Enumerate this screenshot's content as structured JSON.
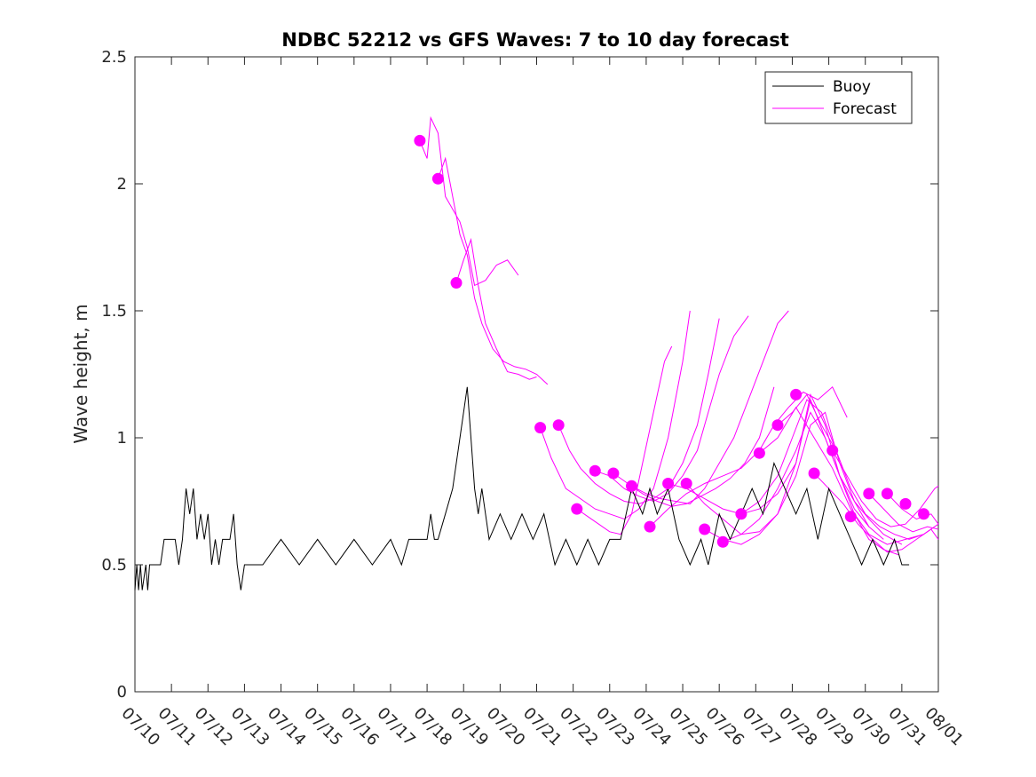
{
  "chart_data": {
    "type": "line",
    "title": "NDBC 52212 vs GFS Waves: 7 to 10 day forecast",
    "xlabel": "",
    "ylabel": "Wave height, m",
    "xlim": [
      "07/10",
      "08/01"
    ],
    "ylim": [
      0,
      2.5
    ],
    "x_ticks": [
      "07/10",
      "07/11",
      "07/12",
      "07/13",
      "07/14",
      "07/15",
      "07/16",
      "07/17",
      "07/18",
      "07/19",
      "07/20",
      "07/21",
      "07/22",
      "07/23",
      "07/24",
      "07/25",
      "07/26",
      "07/27",
      "07/28",
      "07/29",
      "07/30",
      "07/31",
      "08/01"
    ],
    "y_ticks": [
      "0",
      "0.5",
      "1",
      "1.5",
      "2",
      "2.5"
    ],
    "grid": false,
    "legend_position": "top-right",
    "colors": {
      "buoy": "#000000",
      "forecast": "#ff00ff",
      "axes": "#262626"
    },
    "series": [
      {
        "name": "Buoy",
        "color": "#000000",
        "x": [
          0,
          0.05,
          0.1,
          0.15,
          0.2,
          0.3,
          0.35,
          0.4,
          0.5,
          0.7,
          0.8,
          0.95,
          1.1,
          1.2,
          1.3,
          1.35,
          1.4,
          1.5,
          1.6,
          1.7,
          1.8,
          1.9,
          2.0,
          2.1,
          2.2,
          2.3,
          2.4,
          2.5,
          2.6,
          2.7,
          2.8,
          2.9,
          3.0,
          3.1,
          3.2,
          3.5,
          4.0,
          4.5,
          5.0,
          5.5,
          6.0,
          6.5,
          7.0,
          7.3,
          7.5,
          7.8,
          8.0,
          8.1,
          8.2,
          8.3,
          8.5,
          8.7,
          8.8,
          8.9,
          9.0,
          9.1,
          9.2,
          9.3,
          9.4,
          9.5,
          9.7,
          10.0,
          10.3,
          10.6,
          10.9,
          11.2,
          11.5,
          11.8,
          12.1,
          12.4,
          12.7,
          13.0,
          13.3,
          13.6,
          13.9,
          14.1,
          14.3,
          14.6,
          14.9,
          15.2,
          15.5,
          15.7,
          16.0,
          16.3,
          16.6,
          16.9,
          17.2,
          17.5,
          17.8,
          18.1,
          18.4,
          18.7,
          19.0,
          19.3,
          19.6,
          19.9,
          20.2,
          20.5,
          20.8,
          21.0,
          21.2
        ],
        "y": [
          0.4,
          0.5,
          0.4,
          0.5,
          0.4,
          0.5,
          0.4,
          0.5,
          0.5,
          0.5,
          0.6,
          0.6,
          0.6,
          0.5,
          0.6,
          0.7,
          0.8,
          0.7,
          0.8,
          0.6,
          0.7,
          0.6,
          0.7,
          0.5,
          0.6,
          0.5,
          0.6,
          0.6,
          0.6,
          0.7,
          0.5,
          0.4,
          0.5,
          0.5,
          0.5,
          0.5,
          0.6,
          0.5,
          0.6,
          0.5,
          0.6,
          0.5,
          0.6,
          0.5,
          0.6,
          0.6,
          0.6,
          0.7,
          0.6,
          0.6,
          0.7,
          0.8,
          0.9,
          1.0,
          1.1,
          1.2,
          1.0,
          0.8,
          0.7,
          0.8,
          0.6,
          0.7,
          0.6,
          0.7,
          0.6,
          0.7,
          0.5,
          0.6,
          0.5,
          0.6,
          0.5,
          0.6,
          0.6,
          0.8,
          0.7,
          0.8,
          0.7,
          0.8,
          0.6,
          0.5,
          0.6,
          0.5,
          0.7,
          0.6,
          0.7,
          0.8,
          0.7,
          0.9,
          0.8,
          0.7,
          0.8,
          0.6,
          0.8,
          0.7,
          0.6,
          0.5,
          0.6,
          0.5,
          0.6,
          0.5,
          0.5
        ]
      },
      {
        "name": "Forecast",
        "color": "#ff00ff",
        "traces": [
          {
            "x": [
              7.8,
              8.0,
              8.1,
              8.3,
              8.5,
              8.7,
              8.9,
              9.1,
              9.3,
              9.6,
              9.9,
              10.2,
              10.5
            ],
            "y": [
              2.17,
              2.1,
              2.26,
              2.2,
              1.95,
              1.9,
              1.85,
              1.75,
              1.6,
              1.62,
              1.68,
              1.7,
              1.64
            ]
          },
          {
            "x": [
              8.3,
              8.5,
              8.7,
              8.9,
              9.1,
              9.3,
              9.5,
              9.8,
              10.1,
              10.4,
              10.7,
              11.0,
              11.3
            ],
            "y": [
              2.02,
              2.1,
              1.95,
              1.8,
              1.72,
              1.55,
              1.45,
              1.35,
              1.3,
              1.28,
              1.27,
              1.25,
              1.21
            ]
          },
          {
            "x": [
              8.8,
              9.0,
              9.2,
              9.4,
              9.6,
              9.9,
              10.2,
              10.5,
              10.8,
              11.0
            ],
            "y": [
              1.61,
              1.7,
              1.78,
              1.6,
              1.45,
              1.35,
              1.26,
              1.25,
              1.23,
              1.24
            ]
          },
          {
            "x": [
              11.1,
              11.4,
              11.8,
              12.2,
              12.6,
              13.0,
              13.4,
              13.8,
              14.2,
              14.4,
              14.6,
              14.8,
              15.0,
              15.2
            ],
            "y": [
              1.04,
              0.92,
              0.8,
              0.76,
              0.72,
              0.7,
              0.68,
              0.72,
              0.8,
              0.9,
              1.0,
              1.15,
              1.3,
              1.5
            ]
          },
          {
            "x": [
              11.6,
              11.9,
              12.2,
              12.6,
              13.0,
              13.4,
              13.8,
              14.2,
              14.6,
              15.0,
              15.4,
              15.7,
              16.0
            ],
            "y": [
              1.05,
              0.95,
              0.88,
              0.82,
              0.78,
              0.75,
              0.74,
              0.76,
              0.8,
              0.9,
              1.05,
              1.25,
              1.47
            ]
          },
          {
            "x": [
              12.1,
              12.4,
              12.7,
              13.0,
              13.3,
              13.6,
              13.9,
              14.2,
              14.5,
              14.7
            ],
            "y": [
              0.72,
              0.69,
              0.66,
              0.63,
              0.62,
              0.7,
              0.9,
              1.1,
              1.3,
              1.36
            ]
          },
          {
            "x": [
              12.6,
              13.0,
              13.4,
              13.8,
              14.2,
              14.6,
              15.0,
              15.4,
              15.7,
              16.0,
              16.4,
              16.8
            ],
            "y": [
              0.87,
              0.85,
              0.8,
              0.77,
              0.75,
              0.78,
              0.85,
              0.95,
              1.1,
              1.25,
              1.4,
              1.48
            ]
          },
          {
            "x": [
              13.1,
              13.5,
              13.9,
              14.3,
              14.7,
              15.1,
              15.5,
              15.9,
              16.3,
              16.7,
              17.1,
              17.5
            ],
            "y": [
              0.86,
              0.82,
              0.78,
              0.75,
              0.73,
              0.74,
              0.77,
              0.8,
              0.84,
              0.9,
              1.0,
              1.2
            ]
          },
          {
            "x": [
              13.6,
              14.0,
              14.4,
              14.8,
              15.2,
              15.6,
              16.0,
              16.4,
              16.8,
              17.2,
              17.6,
              17.9
            ],
            "y": [
              0.81,
              0.78,
              0.76,
              0.75,
              0.74,
              0.8,
              0.9,
              1.0,
              1.15,
              1.3,
              1.45,
              1.5
            ]
          },
          {
            "x": [
              14.1,
              14.6,
              15.1,
              15.6,
              16.1,
              16.6,
              17.1,
              17.5,
              17.9,
              18.3,
              18.7,
              19.1,
              19.5
            ],
            "y": [
              0.65,
              0.72,
              0.78,
              0.82,
              0.85,
              0.88,
              0.95,
              1.05,
              1.12,
              1.18,
              1.15,
              1.2,
              1.08
            ]
          },
          {
            "x": [
              14.6,
              15.1,
              15.6,
              16.1,
              16.6,
              17.1,
              17.6,
              18.0,
              18.4,
              18.8,
              19.2
            ],
            "y": [
              0.82,
              0.8,
              0.76,
              0.72,
              0.7,
              0.75,
              0.85,
              1.0,
              1.15,
              1.1,
              0.95
            ]
          },
          {
            "x": [
              15.1,
              15.6,
              16.1,
              16.6,
              17.1,
              17.6,
              18.1,
              18.5,
              18.9,
              19.3,
              19.7,
              20.1
            ],
            "y": [
              0.82,
              0.74,
              0.68,
              0.62,
              0.63,
              0.7,
              0.85,
              1.05,
              1.1,
              0.9,
              0.75,
              0.65
            ]
          },
          {
            "x": [
              15.6,
              16.1,
              16.6,
              17.1,
              17.6,
              18.1,
              18.5,
              18.9,
              19.3,
              19.7,
              20.1,
              20.5
            ],
            "y": [
              0.64,
              0.6,
              0.58,
              0.62,
              0.7,
              0.9,
              1.17,
              1.05,
              0.85,
              0.72,
              0.65,
              0.6
            ]
          },
          {
            "x": [
              16.1,
              16.6,
              17.1,
              17.6,
              18.1,
              18.5,
              18.9,
              19.3,
              19.7,
              20.1,
              20.5,
              21.0
            ],
            "y": [
              0.59,
              0.62,
              0.68,
              0.8,
              0.95,
              1.1,
              1.0,
              0.85,
              0.75,
              0.68,
              0.62,
              0.58
            ]
          },
          {
            "x": [
              16.6,
              17.1,
              17.6,
              18.1,
              18.5,
              18.9,
              19.3,
              19.7,
              20.1,
              20.5,
              20.9
            ],
            "y": [
              0.7,
              0.72,
              0.78,
              0.9,
              1.15,
              1.0,
              0.85,
              0.7,
              0.6,
              0.56,
              0.54
            ]
          },
          {
            "x": [
              17.1,
              17.6,
              18.1,
              18.6,
              19.1,
              19.6,
              20.1,
              20.6,
              21.1,
              21.6
            ],
            "y": [
              0.94,
              1.0,
              1.12,
              1.0,
              0.88,
              0.72,
              0.62,
              0.58,
              0.6,
              0.62
            ]
          },
          {
            "x": [
              17.6,
              18.0,
              18.4,
              18.8,
              19.2,
              19.6,
              20.0,
              20.4,
              20.8,
              21.2,
              21.6,
              22.0
            ],
            "y": [
              1.05,
              1.1,
              1.17,
              1.05,
              0.95,
              0.8,
              0.7,
              0.65,
              0.62,
              0.6,
              0.62,
              0.66
            ]
          },
          {
            "x": [
              18.6,
              19.0,
              19.4,
              19.8,
              20.2,
              20.6,
              21.0,
              21.4,
              21.8,
              22.0
            ],
            "y": [
              0.86,
              0.8,
              0.74,
              0.66,
              0.6,
              0.55,
              0.56,
              0.6,
              0.64,
              0.6
            ]
          },
          {
            "x": [
              19.1,
              19.5,
              19.9,
              20.3,
              20.7,
              21.1,
              21.5,
              21.9,
              22.0
            ],
            "y": [
              0.95,
              0.85,
              0.75,
              0.68,
              0.65,
              0.66,
              0.72,
              0.8,
              0.81
            ]
          },
          {
            "x": [
              20.1,
              20.5,
              20.9,
              21.3,
              21.7,
              22.0
            ],
            "y": [
              0.78,
              0.72,
              0.66,
              0.63,
              0.65,
              0.64
            ]
          },
          {
            "x": [
              20.6,
              21.0,
              21.4,
              21.8,
              22.0
            ],
            "y": [
              0.78,
              0.72,
              0.68,
              0.7,
              0.66
            ]
          }
        ],
        "markers": {
          "x": [
            7.8,
            8.3,
            8.8,
            11.1,
            11.6,
            12.1,
            12.6,
            13.1,
            13.6,
            14.1,
            14.6,
            15.1,
            15.6,
            16.1,
            16.6,
            17.1,
            17.6,
            18.1,
            18.6,
            19.1,
            19.6,
            20.1,
            20.6,
            21.1,
            21.6
          ],
          "y": [
            2.17,
            2.02,
            1.61,
            1.04,
            1.05,
            0.72,
            0.87,
            0.86,
            0.81,
            0.65,
            0.82,
            0.82,
            0.64,
            0.59,
            0.7,
            0.94,
            1.05,
            1.17,
            0.86,
            0.95,
            0.69,
            0.78,
            0.78,
            0.74,
            0.7
          ]
        }
      }
    ]
  }
}
